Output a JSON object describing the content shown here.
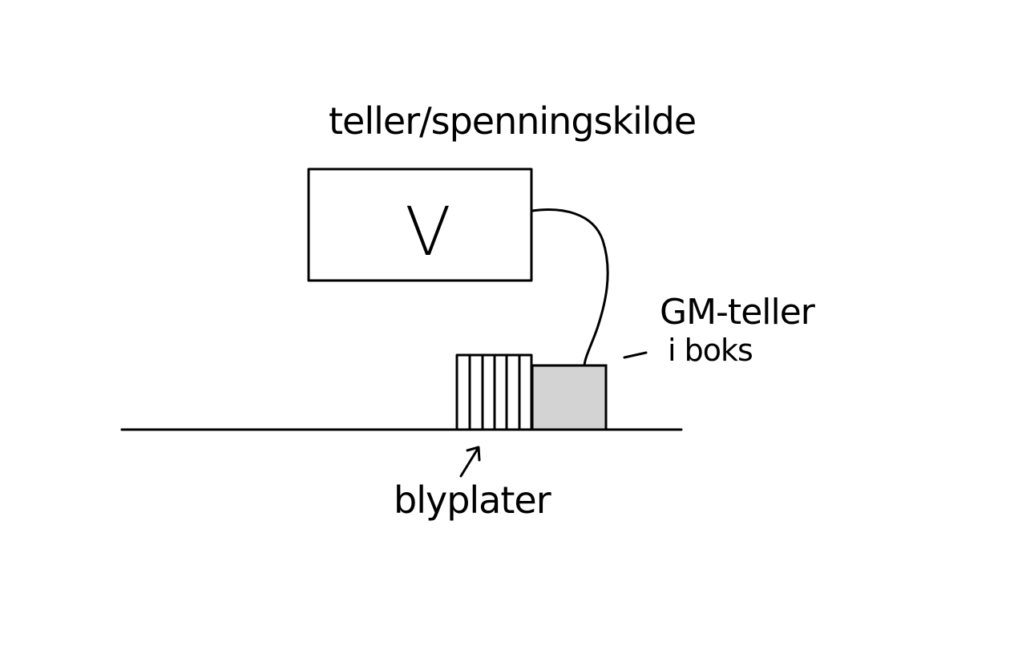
{
  "labels": {
    "title": "teller/spenningskilde",
    "meter_symbol": "V",
    "detector_line1": "GM-teller",
    "detector_line2": "i boks",
    "plates": "blyplater"
  },
  "colors": {
    "ink": "#000000",
    "detector_fill": "#d3d3d3",
    "background": "#ffffff"
  },
  "plates": {
    "count": 5
  }
}
